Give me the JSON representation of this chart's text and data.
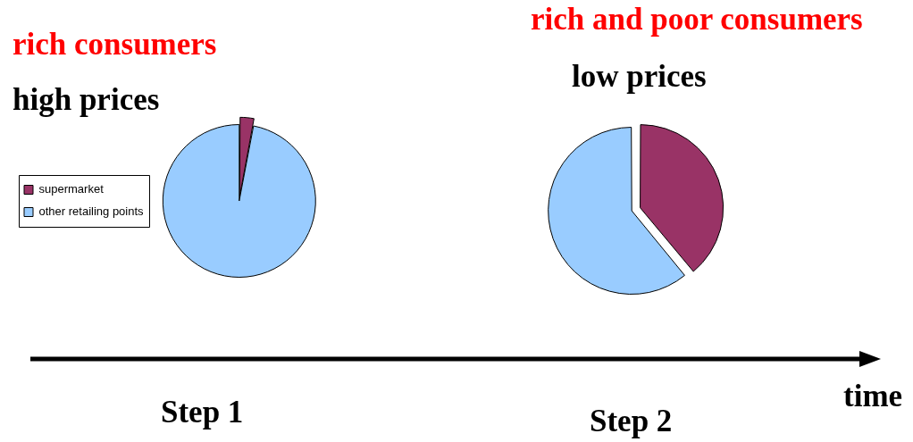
{
  "chart_data": [
    {
      "type": "pie",
      "title": "rich consumers",
      "subtitle": "high prices",
      "categories": [
        "supermarket",
        "other retailing points"
      ],
      "values": [
        3,
        97
      ],
      "colors": [
        "#993366",
        "#99ccff"
      ],
      "legend": "left",
      "annotations": [
        "Step 1"
      ]
    },
    {
      "type": "pie",
      "title": "rich and poor consumers",
      "subtitle": "low prices",
      "categories": [
        null,
        null
      ],
      "values": [
        39,
        61
      ],
      "colors": [
        "#993366",
        "#99ccff"
      ],
      "annotations": [
        "Step 2",
        "time"
      ]
    }
  ]
}
